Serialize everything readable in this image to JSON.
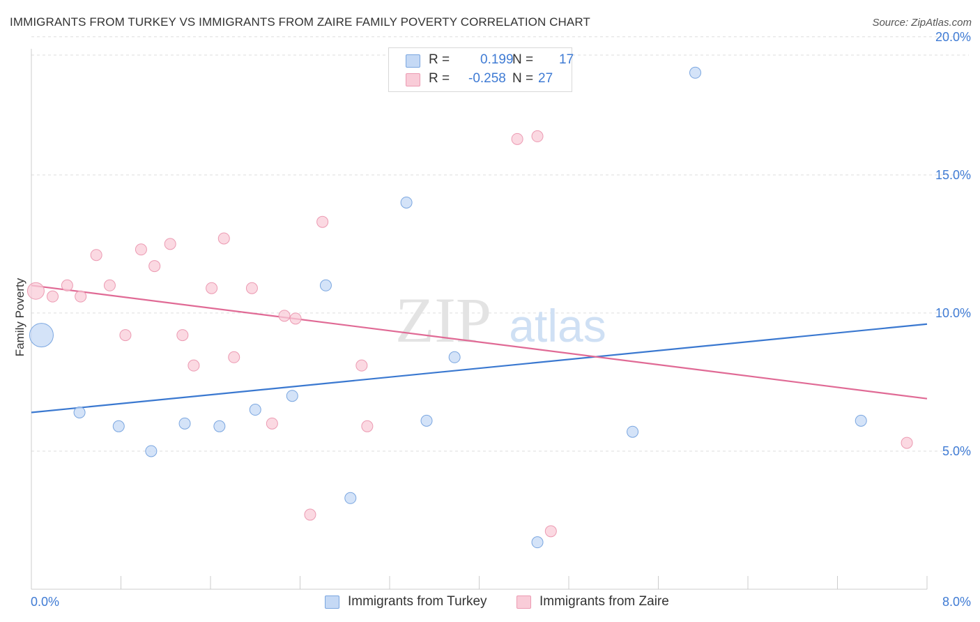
{
  "header": {
    "title": "IMMIGRANTS FROM TURKEY VS IMMIGRANTS FROM ZAIRE FAMILY POVERTY CORRELATION CHART",
    "source": "Source: ZipAtlas.com"
  },
  "legend": {
    "r_label": "R =",
    "n_label": "N =",
    "rows": [
      {
        "r_value": "0.199",
        "n_value": "17"
      },
      {
        "r_value": "-0.258",
        "n_value": "27"
      }
    ]
  },
  "watermark": {
    "part1": "ZIP",
    "part2": "atlas"
  },
  "chart_data": {
    "type": "scatter",
    "title": "IMMIGRANTS FROM TURKEY VS IMMIGRANTS FROM ZAIRE FAMILY POVERTY CORRELATION CHART",
    "xlabel": "",
    "ylabel": "Family Poverty",
    "xlim": [
      0,
      8.0
    ],
    "ylim": [
      0,
      20.5
    ],
    "x_tick_labels": [
      "0.0%",
      "8.0%"
    ],
    "y_ticks": [
      5.0,
      10.0,
      15.0,
      20.0
    ],
    "y_tick_labels": [
      "5.0%",
      "10.0%",
      "15.0%",
      "20.0%"
    ],
    "grid": "horizontal dashed",
    "legend_position": "top-center and bottom",
    "colors": {
      "turkey_fill": "#c5d9f5",
      "turkey_stroke": "#7aa6e0",
      "turkey_line": "#3a78d0",
      "zaire_fill": "#f9ccd8",
      "zaire_stroke": "#ec9ab2",
      "zaire_line": "#e06a95",
      "tick_label": "#3f7bd4",
      "grid": "#dddddd",
      "axis": "#cccccc"
    },
    "series": [
      {
        "name": "Immigrants from Turkey",
        "stats": {
          "R": 0.199,
          "N": 17
        },
        "trend": {
          "x": [
            0,
            8.0
          ],
          "y": [
            6.4,
            9.6
          ]
        },
        "points": [
          {
            "x": 0.09,
            "y": 9.2,
            "size": "large"
          },
          {
            "x": 0.43,
            "y": 6.4
          },
          {
            "x": 0.78,
            "y": 5.9
          },
          {
            "x": 1.07,
            "y": 5.0
          },
          {
            "x": 1.37,
            "y": 6.0
          },
          {
            "x": 1.68,
            "y": 5.9
          },
          {
            "x": 2.0,
            "y": 6.5
          },
          {
            "x": 2.33,
            "y": 7.0
          },
          {
            "x": 2.63,
            "y": 11.0
          },
          {
            "x": 2.85,
            "y": 3.3
          },
          {
            "x": 3.35,
            "y": 14.0
          },
          {
            "x": 3.53,
            "y": 6.1
          },
          {
            "x": 3.78,
            "y": 8.4
          },
          {
            "x": 4.52,
            "y": 1.7
          },
          {
            "x": 5.37,
            "y": 5.7
          },
          {
            "x": 5.93,
            "y": 18.7
          },
          {
            "x": 7.41,
            "y": 6.1
          }
        ]
      },
      {
        "name": "Immigrants from Zaire",
        "stats": {
          "R": -0.258,
          "N": 27
        },
        "trend": {
          "x": [
            0,
            8.0
          ],
          "y": [
            11.0,
            6.9
          ]
        },
        "points": [
          {
            "x": 0.04,
            "y": 10.8,
            "size": "medium"
          },
          {
            "x": 0.19,
            "y": 10.6
          },
          {
            "x": 0.32,
            "y": 11.0
          },
          {
            "x": 0.44,
            "y": 10.6
          },
          {
            "x": 0.58,
            "y": 12.1
          },
          {
            "x": 0.7,
            "y": 11.0
          },
          {
            "x": 0.84,
            "y": 9.2
          },
          {
            "x": 0.98,
            "y": 12.3
          },
          {
            "x": 1.1,
            "y": 11.7
          },
          {
            "x": 1.24,
            "y": 12.5
          },
          {
            "x": 1.35,
            "y": 9.2
          },
          {
            "x": 1.45,
            "y": 8.1
          },
          {
            "x": 1.61,
            "y": 10.9
          },
          {
            "x": 1.72,
            "y": 12.7
          },
          {
            "x": 1.81,
            "y": 8.4
          },
          {
            "x": 1.97,
            "y": 10.9
          },
          {
            "x": 2.15,
            "y": 6.0
          },
          {
            "x": 2.26,
            "y": 9.9
          },
          {
            "x": 2.36,
            "y": 9.8
          },
          {
            "x": 2.49,
            "y": 2.7
          },
          {
            "x": 2.6,
            "y": 13.3
          },
          {
            "x": 2.95,
            "y": 8.1
          },
          {
            "x": 3.0,
            "y": 5.9
          },
          {
            "x": 4.34,
            "y": 16.3
          },
          {
            "x": 4.52,
            "y": 16.4
          },
          {
            "x": 4.64,
            "y": 2.1
          },
          {
            "x": 7.82,
            "y": 5.3
          }
        ]
      }
    ]
  }
}
